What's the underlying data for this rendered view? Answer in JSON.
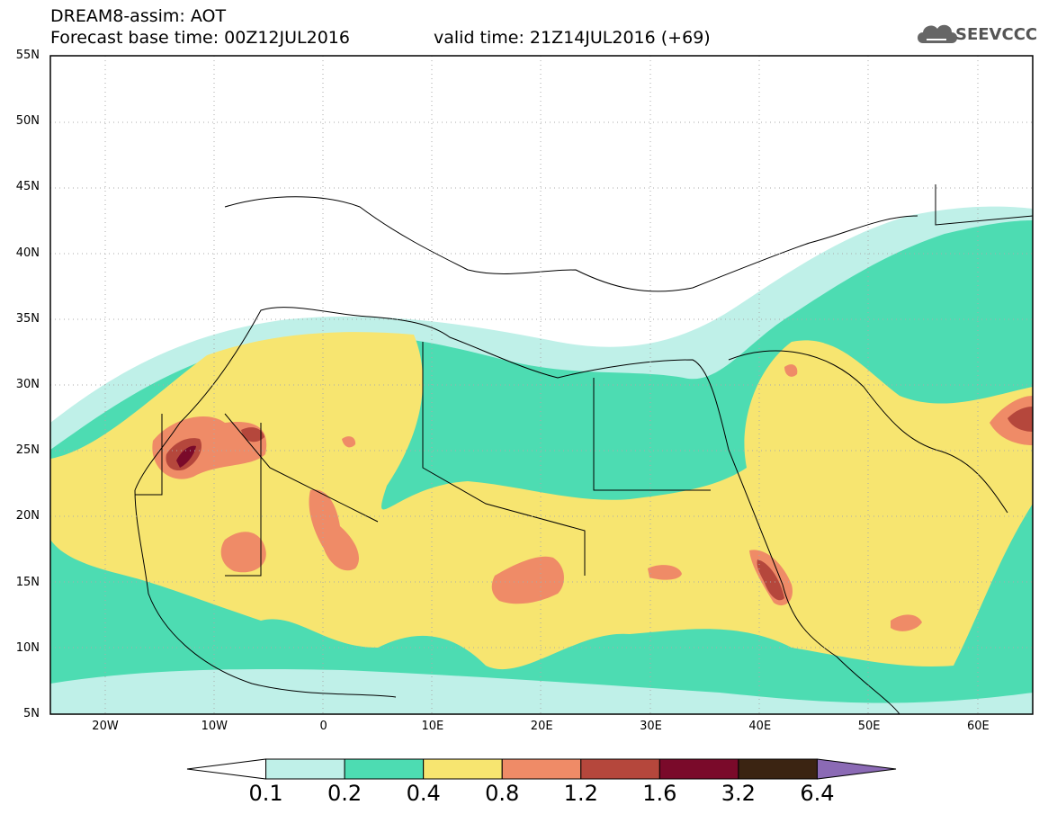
{
  "header": {
    "line1": "DREAM8-assim: AOT",
    "line2": "Forecast base time: 00Z12JUL2016",
    "valid": "valid time: 21Z14JUL2016 (+69)"
  },
  "logo": {
    "text": "SEEVCCC",
    "icon": "cloud-icon"
  },
  "map": {
    "lat_labels": [
      "55N",
      "50N",
      "45N",
      "40N",
      "35N",
      "30N",
      "25N",
      "20N",
      "15N",
      "10N",
      "5N"
    ],
    "lon_labels": [
      "20W",
      "10W",
      "0",
      "10E",
      "20E",
      "30E",
      "40E",
      "50E",
      "60E"
    ],
    "lat_range": [
      5,
      55
    ],
    "lon_range": [
      -25,
      65
    ],
    "grid": "dotted"
  },
  "colorbar": {
    "levels": [
      "0.1",
      "0.2",
      "0.4",
      "0.8",
      "1.2",
      "1.6",
      "3.2",
      "6.4"
    ],
    "colors": [
      "#ffffff",
      "#bff0e8",
      "#4ddcb2",
      "#f7e570",
      "#ef8b67",
      "#b5473c",
      "#7a0a2a",
      "#3b2412",
      "#8b6ab5"
    ]
  }
}
